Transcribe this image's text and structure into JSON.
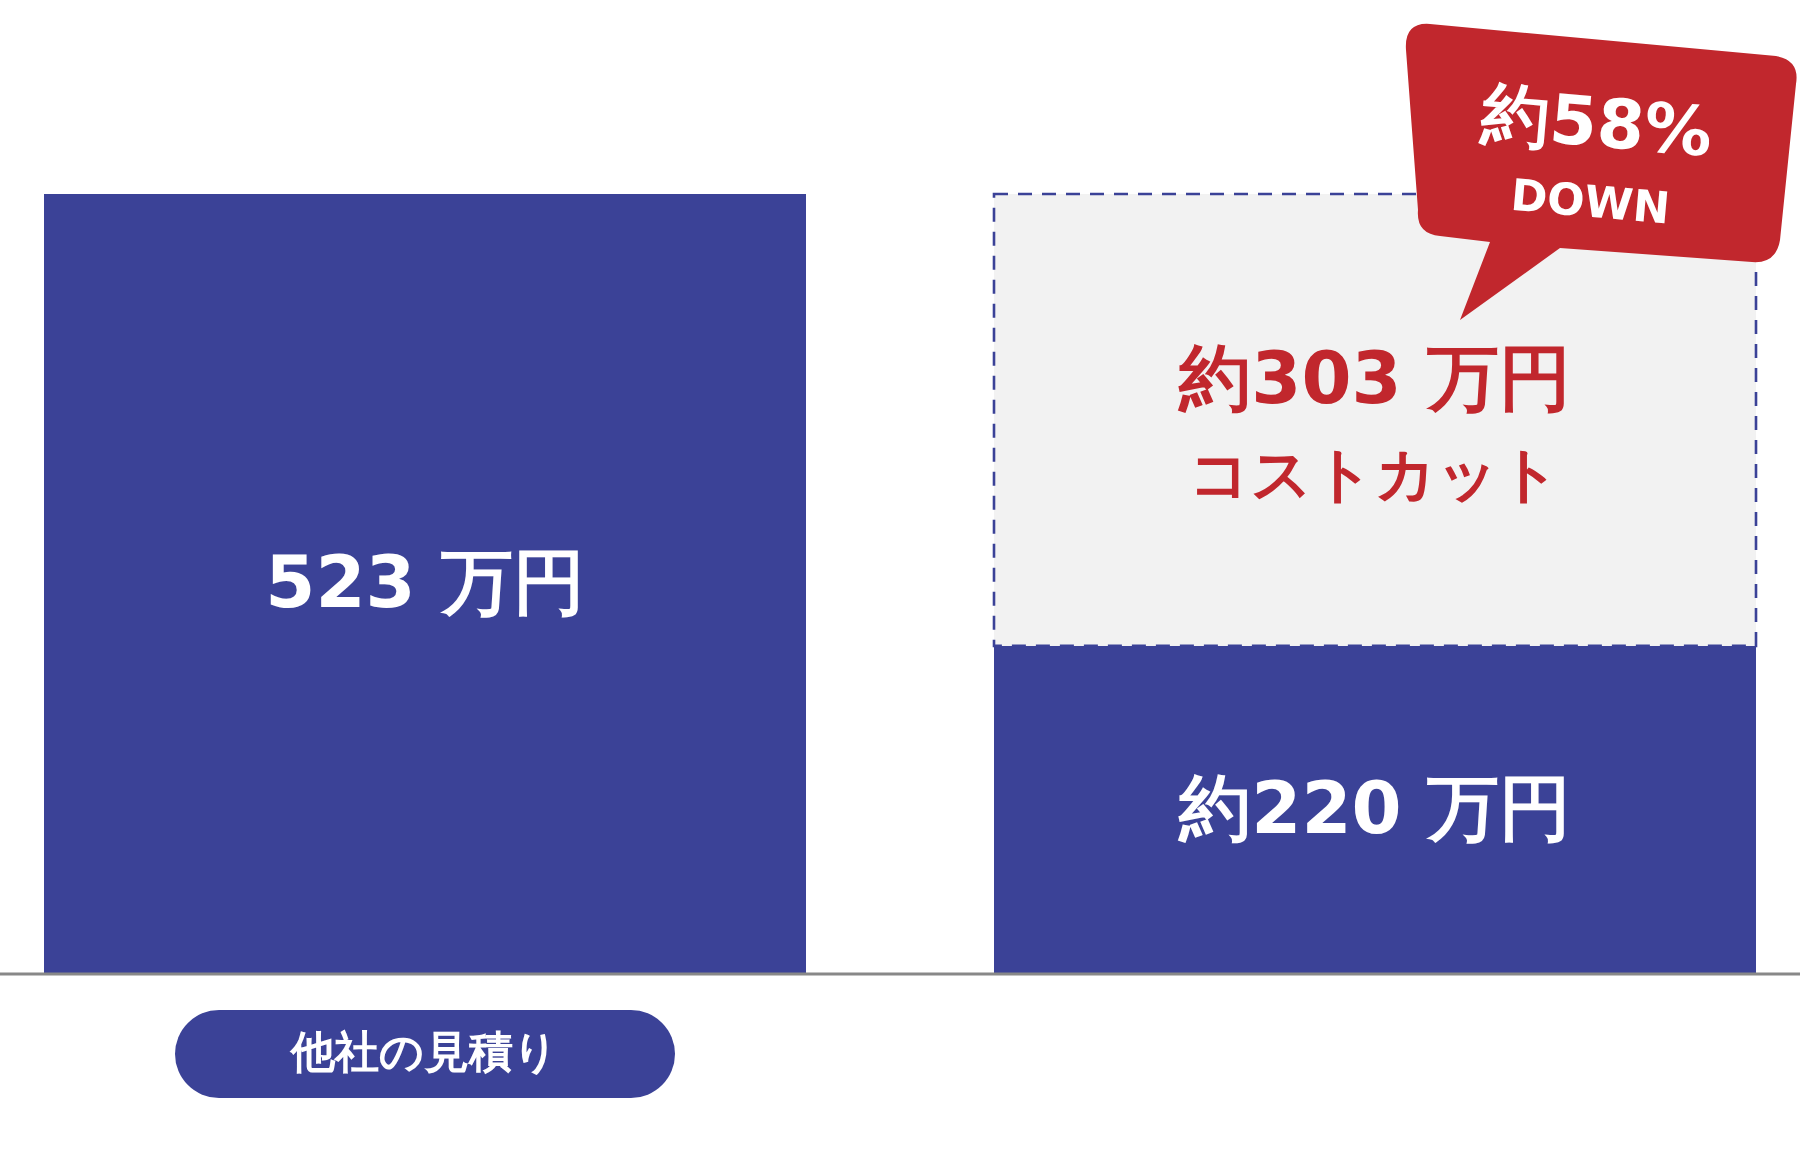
{
  "chart_data": {
    "type": "bar",
    "stacked": true,
    "categories": [
      "他社の見積り",
      null
    ],
    "series": [
      {
        "color": "#3b4297",
        "values": [
          523,
          220
        ],
        "value_labels": [
          "523 万円",
          "約220 万円"
        ]
      },
      {
        "color": "#f2f2f2",
        "values": [
          null,
          303
        ],
        "value_labels": [
          null,
          "約303 万円"
        ]
      }
    ],
    "annotations": [
      "約58%\nDOWN",
      {
        "text": "コストカット"
      }
    ]
  }
}
